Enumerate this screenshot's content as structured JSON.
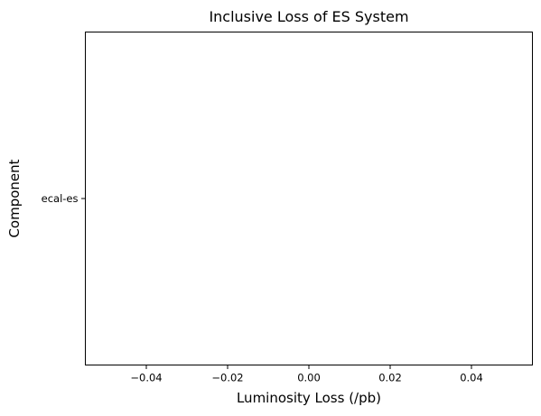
{
  "chart_data": {
    "type": "bar",
    "orientation": "horizontal",
    "title": "Inclusive Loss of ES System",
    "xlabel": "Luminosity Loss (/pb)",
    "ylabel": "Component",
    "categories": [
      "ecal-es"
    ],
    "values": [
      0
    ],
    "xlim": [
      -0.055,
      0.055
    ],
    "xticks": [
      -0.04,
      -0.02,
      0.0,
      0.02,
      0.04
    ],
    "xtick_labels": [
      "−0.04",
      "−0.02",
      "0.00",
      "0.02",
      "0.04"
    ],
    "grid": false,
    "bar_color": "#1f77b4"
  }
}
